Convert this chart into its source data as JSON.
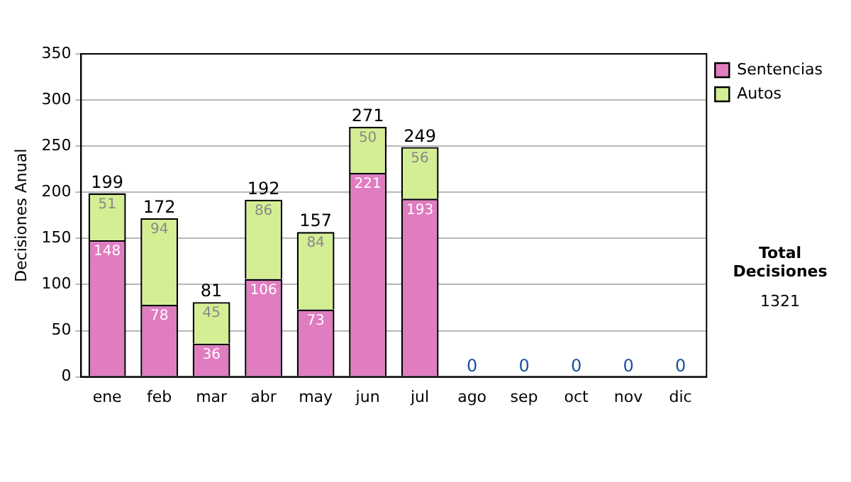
{
  "chart_data": {
    "type": "bar",
    "stacked": true,
    "ylabel": "Decisiones Anual",
    "categories": [
      "ene",
      "feb",
      "mar",
      "abr",
      "may",
      "jun",
      "jul",
      "ago",
      "sep",
      "oct",
      "nov",
      "dic"
    ],
    "series": [
      {
        "name": "Sentencias",
        "color": "#e07cc0",
        "values": [
          148,
          78,
          36,
          106,
          73,
          221,
          193,
          0,
          0,
          0,
          0,
          0
        ],
        "value_labels": [
          "148",
          "78",
          "36",
          "106",
          "73",
          "221",
          "193",
          null,
          null,
          null,
          null,
          null
        ]
      },
      {
        "name": "Autos",
        "color": "#d4ee94",
        "values": [
          51,
          94,
          45,
          86,
          84,
          50,
          56,
          0,
          0,
          0,
          0,
          0
        ],
        "value_labels": [
          "51",
          "94",
          "45",
          "86",
          "84",
          "50",
          "56",
          null,
          null,
          null,
          null,
          null
        ]
      }
    ],
    "totals": [
      "199",
      "172",
      "81",
      "192",
      "157",
      "271",
      "249",
      "0",
      "0",
      "0",
      "0",
      "0"
    ],
    "ylim": [
      0,
      350
    ],
    "yticks": [
      0,
      50,
      100,
      150,
      200,
      250,
      300,
      350
    ],
    "grid": "y",
    "legend": "right",
    "annotations": [
      "Total Decisiones",
      "1321"
    ]
  }
}
